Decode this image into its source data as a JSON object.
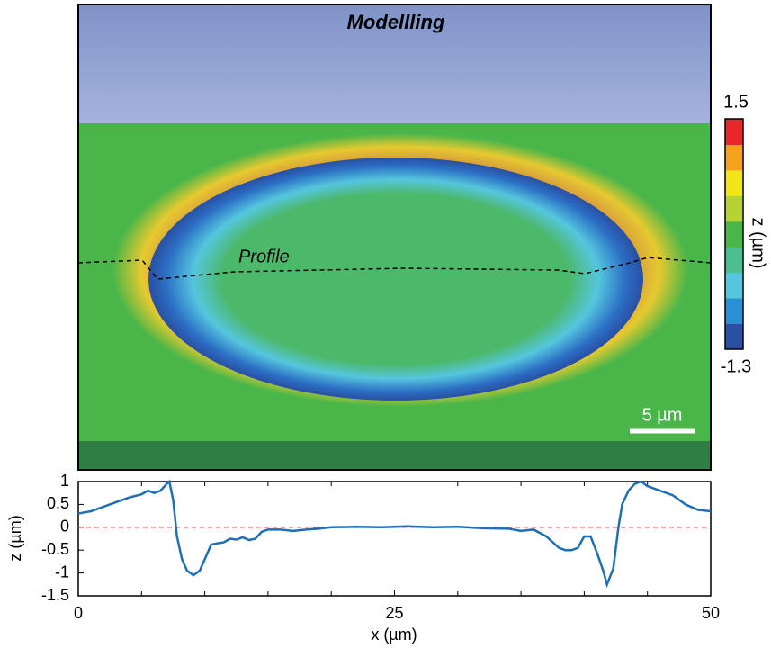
{
  "chart_data": [
    {
      "type": "surface",
      "title": "Modellling",
      "annotation": "Profile",
      "scale_bar": "5 µm",
      "colorbar": {
        "label": "z (µm)",
        "lim": [
          -1.3,
          1.5
        ],
        "ticks": [
          -1.3,
          1.5
        ],
        "colors": [
          "#2a4fa3",
          "#2b8fd4",
          "#55c6de",
          "#4cbf8e",
          "#4ab649",
          "#b5d334",
          "#f0e618",
          "#f5a21e",
          "#e8262b"
        ]
      }
    },
    {
      "type": "line",
      "xlabel": "x (µm)",
      "ylabel": "z (µm)",
      "xlim": [
        0,
        50
      ],
      "ylim": [
        -1.5,
        1
      ],
      "xticks": [
        0,
        25,
        50
      ],
      "xminorticks": [
        5,
        10,
        15,
        20,
        30,
        35,
        40,
        45
      ],
      "yticks": [
        -1.5,
        -1,
        -0.5,
        0,
        0.5,
        1
      ],
      "hline": {
        "value": 0,
        "color": "#e8262b"
      },
      "x": [
        0,
        1,
        2,
        3,
        4,
        5,
        5.5,
        6,
        6.5,
        7,
        7.2,
        7.5,
        7.8,
        8.2,
        8.6,
        9.1,
        9.6,
        10,
        10.5,
        11,
        11.5,
        12,
        12.5,
        13,
        13.5,
        14,
        14.5,
        15,
        16,
        17,
        18,
        19,
        20,
        22,
        24,
        26,
        28,
        30,
        32,
        34,
        35,
        36,
        37,
        38,
        38.5,
        39,
        39.5,
        40,
        40.5,
        41,
        41.5,
        41.8,
        42.3,
        42.7,
        43,
        43.5,
        44,
        44.5,
        45,
        46,
        47,
        48,
        49,
        50
      ],
      "series": [
        {
          "name": "Profile",
          "color": "#1f6fb8",
          "values": [
            0.3,
            0.35,
            0.45,
            0.55,
            0.65,
            0.72,
            0.8,
            0.75,
            0.8,
            0.95,
            1.0,
            0.6,
            -0.2,
            -0.7,
            -0.95,
            -1.05,
            -0.95,
            -0.7,
            -0.38,
            -0.35,
            -0.33,
            -0.25,
            -0.27,
            -0.22,
            -0.28,
            -0.25,
            -0.1,
            -0.05,
            -0.05,
            -0.08,
            -0.05,
            -0.03,
            0,
            0.01,
            0,
            0.02,
            0,
            0.01,
            -0.02,
            -0.03,
            -0.08,
            -0.05,
            -0.2,
            -0.45,
            -0.5,
            -0.5,
            -0.45,
            -0.2,
            -0.2,
            -0.55,
            -0.95,
            -1.25,
            -0.9,
            0,
            0.5,
            0.8,
            0.95,
            1.0,
            0.9,
            0.8,
            0.7,
            0.5,
            0.38,
            0.35
          ]
        }
      ]
    }
  ]
}
